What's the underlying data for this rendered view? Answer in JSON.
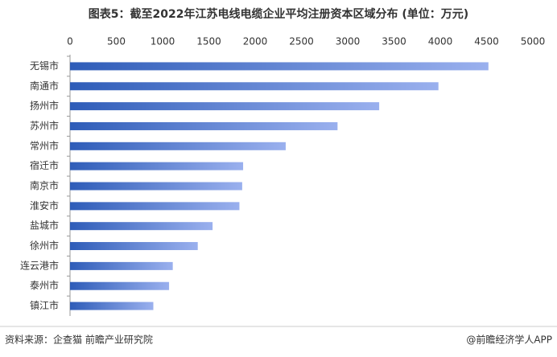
{
  "chart_data": {
    "type": "hbar",
    "title": "图表5：截至2022年江苏电线电缆企业平均注册资本区域分布 (单位：万元)",
    "categories": [
      "无锡市",
      "南通市",
      "扬州市",
      "苏州市",
      "常州市",
      "宿迁市",
      "南京市",
      "淮安市",
      "盐城市",
      "徐州市",
      "连云港市",
      "泰州市",
      "镇江市"
    ],
    "values": [
      4520,
      3980,
      3340,
      2890,
      2330,
      1870,
      1860,
      1830,
      1540,
      1380,
      1110,
      1070,
      900
    ],
    "color": "#2e5cb8",
    "xlim": [
      0,
      5000
    ],
    "xticks": [
      0,
      500,
      1000,
      1500,
      2000,
      2500,
      3000,
      3500,
      4000,
      4500,
      5000
    ],
    "source": "资料来源：企查猫 前瞻产业研究院",
    "credit": "@前瞻经济学人APP"
  }
}
